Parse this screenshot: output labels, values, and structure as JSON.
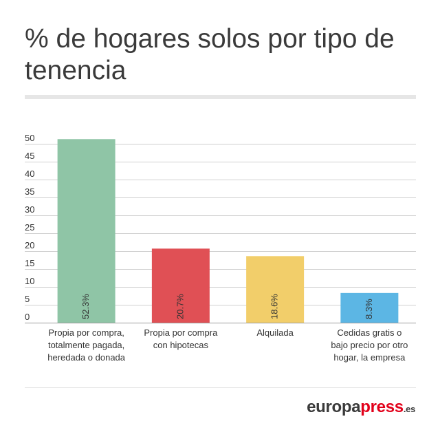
{
  "chart_data": {
    "type": "bar",
    "title": "% de hogares solos por tipo de tenencia",
    "categories": [
      [
        "Propia por compra,",
        "totalmente pagada,",
        "heredada o donada"
      ],
      [
        "Propia por compra",
        "con hipotecas"
      ],
      [
        "Alquilada"
      ],
      [
        "Cedidas gratis o",
        "bajo precio por otro",
        "hogar, la empresa"
      ]
    ],
    "values": [
      52.3,
      20.7,
      18.6,
      8.3
    ],
    "value_labels": [
      "52.3%",
      "20.7%",
      "18.6%",
      "8.3%"
    ],
    "colors": [
      "#8fc5a6",
      "#e05055",
      "#f2ce6a",
      "#5cb6e4"
    ],
    "ylim": [
      0,
      50
    ],
    "yticks": [
      0,
      5,
      10,
      15,
      20,
      25,
      30,
      35,
      40,
      45,
      50
    ],
    "grid": true
  },
  "brand": {
    "name_main": "europa",
    "name_accent": "press",
    "tld": ".es"
  }
}
